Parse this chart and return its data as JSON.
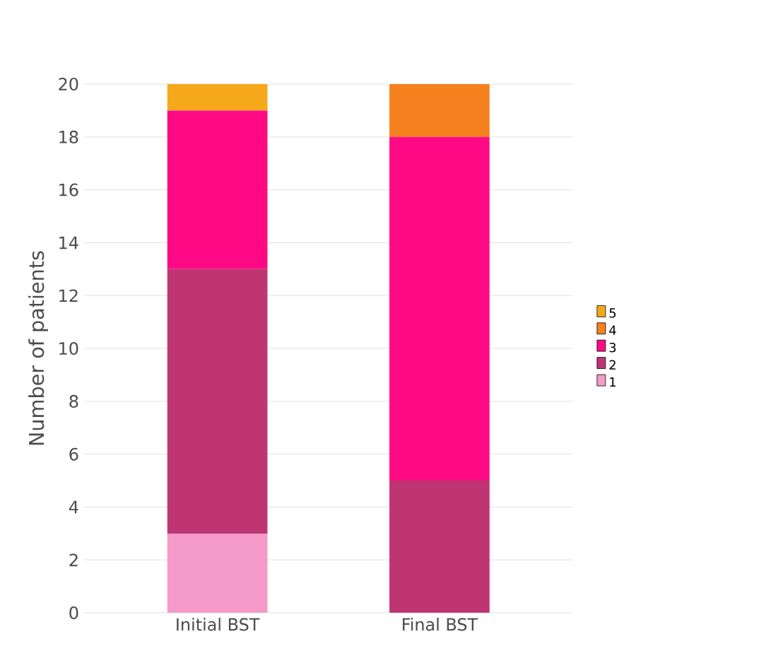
{
  "chart_data": {
    "type": "bar",
    "stacked": true,
    "ylabel": "Number of patients",
    "categories": [
      "Initial BST",
      "Final BST"
    ],
    "series": [
      {
        "name": "1",
        "color": "#f49ac8",
        "values": [
          3,
          0
        ]
      },
      {
        "name": "2",
        "color": "#bf3572",
        "values": [
          10,
          5
        ]
      },
      {
        "name": "3",
        "color": "#ff0a84",
        "values": [
          6,
          13
        ]
      },
      {
        "name": "4",
        "color": "#f5821f",
        "values": [
          0,
          2
        ]
      },
      {
        "name": "5",
        "color": "#f5a81a",
        "values": [
          1,
          0
        ]
      }
    ],
    "ylim": [
      0,
      20
    ],
    "yticks": [
      0,
      2,
      4,
      6,
      8,
      10,
      12,
      14,
      16,
      18,
      20
    ],
    "grid": "y",
    "legend": "right"
  }
}
